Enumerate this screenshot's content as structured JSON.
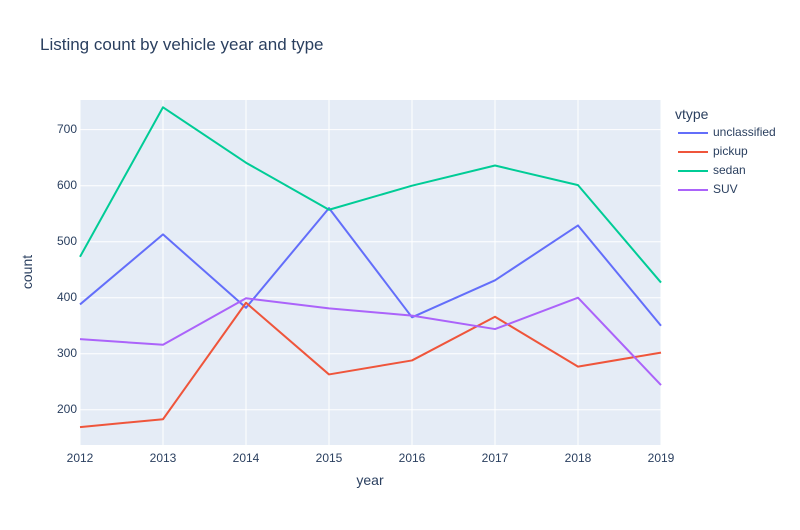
{
  "chart_data": {
    "type": "line",
    "title": "Listing count by vehicle year and type",
    "xlabel": "year",
    "ylabel": "count",
    "x": [
      2012,
      2013,
      2014,
      2015,
      2016,
      2017,
      2018,
      2019
    ],
    "xlim": [
      2012,
      2019
    ],
    "ylim": [
      137,
      753
    ],
    "yticks": [
      200,
      300,
      400,
      500,
      600,
      700
    ],
    "grid": true,
    "legend": {
      "title": "vtype",
      "placement": "right"
    },
    "series": [
      {
        "name": "unclassified",
        "color": "#636efa",
        "values": [
          388,
          513,
          382,
          560,
          365,
          431,
          529,
          350
        ]
      },
      {
        "name": "pickup",
        "color": "#ef553b",
        "values": [
          169,
          183,
          391,
          263,
          288,
          366,
          277,
          302
        ]
      },
      {
        "name": "sedan",
        "color": "#00cc96",
        "values": [
          473,
          740,
          641,
          557,
          600,
          636,
          601,
          427
        ]
      },
      {
        "name": "SUV",
        "color": "#ab63fa",
        "values": [
          326,
          316,
          399,
          381,
          368,
          344,
          400,
          244
        ]
      }
    ]
  }
}
